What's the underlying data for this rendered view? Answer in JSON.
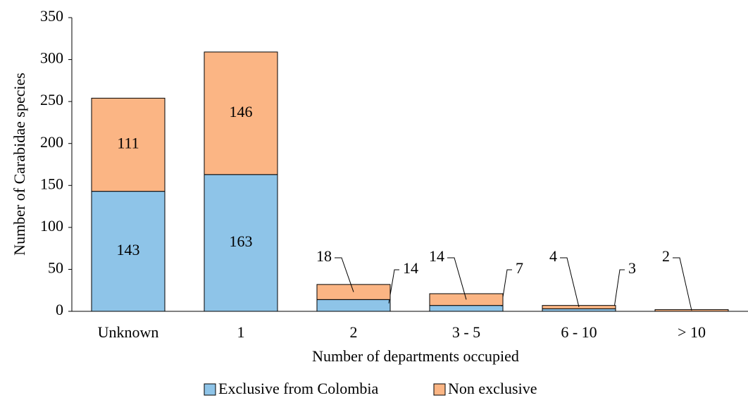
{
  "chart_data": {
    "type": "stacked_bar",
    "categories": [
      "Unknown",
      "1",
      "2",
      "3 - 5",
      "6 - 10",
      "> 10"
    ],
    "series": [
      {
        "name": "Exclusive from Colombia",
        "color": "#8ec4e8",
        "values": [
          143,
          163,
          14,
          7,
          3,
          0
        ]
      },
      {
        "name": "Non exclusive",
        "color": "#fbb584",
        "values": [
          111,
          146,
          18,
          14,
          4,
          2
        ]
      }
    ],
    "ylabel": "Number of Carabidae species",
    "xlabel": "Number of departments occupied",
    "ylim": [
      0,
      350
    ],
    "yticks": [
      0,
      50,
      100,
      150,
      200,
      250,
      300,
      350
    ],
    "legend": "bottom"
  }
}
